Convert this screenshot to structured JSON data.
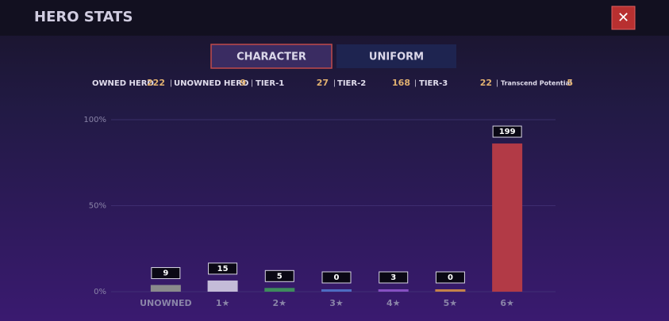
{
  "header": {
    "title": "HERO STATS",
    "close": "✕"
  },
  "tabs": [
    "CHARACTER",
    "UNIFORM"
  ],
  "stats": [
    {
      "label": "OWNED HERO",
      "value": 222
    },
    {
      "label": "UNOWNED HERO",
      "value": 9
    },
    {
      "label": "TIER-1",
      "value": 27
    },
    {
      "label": "TIER-2",
      "value": 168
    },
    {
      "label": "TIER-3",
      "value": 22
    },
    {
      "label": "Transcend Potential",
      "value": 5
    }
  ],
  "chart_data": {
    "type": "bar",
    "categories": [
      "UNOWNED",
      "1★",
      "2★",
      "3★",
      "4★",
      "5★",
      "6★"
    ],
    "values": [
      9,
      15,
      5,
      0,
      3,
      0,
      199
    ],
    "colors": [
      "#8a8a8c",
      "#c4bcd8",
      "#3e8c5c",
      "#4d6cc2",
      "#8650c2",
      "#c4824a",
      "#b23a46"
    ],
    "ylim": [
      0,
      231
    ],
    "yticks": [
      {
        "value": 0,
        "label": "0%"
      },
      {
        "value": 115.5,
        "label": "50%"
      },
      {
        "value": 231,
        "label": "100%"
      }
    ],
    "grid": true
  }
}
